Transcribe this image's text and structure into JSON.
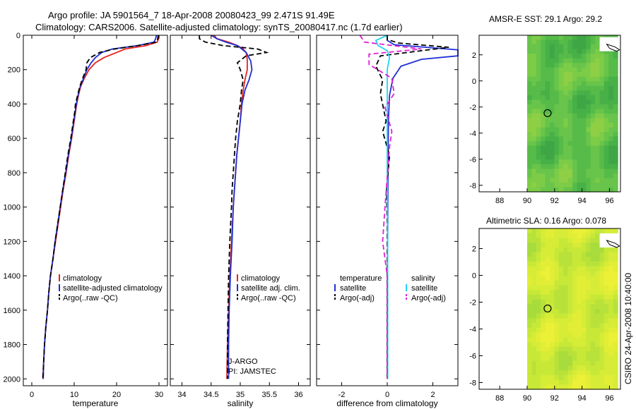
{
  "header": {
    "title_line1": "Argo profile: JA 5901564_7 18-Apr-2008 20080423_99 2.471S 91.49E",
    "title_line2": "Climatology: CARS2006. Satellite-adjusted climatology: synTS_20080417.nc (1.7d earlier)",
    "credit": "CSIRO 24-Apr-2008 10:40:00"
  },
  "colors": {
    "climatology": "#e8231e",
    "satellite": "#1f2fd6",
    "argo": "#000000",
    "salinity_satellite": "#22d4ee",
    "salinity_argo": "#e020d8"
  },
  "chart_data": [
    {
      "id": "temperature",
      "type": "line",
      "xlabel": "temperature",
      "xlim": [
        -2,
        32
      ],
      "ylim": [
        0,
        2040
      ],
      "xticks": [
        0,
        10,
        20,
        30
      ],
      "yticks": [
        0,
        200,
        400,
        600,
        800,
        1000,
        1200,
        1400,
        1600,
        1800,
        2000
      ],
      "legend": [
        "climatology",
        "satellite-adjusted climatology",
        "Argo(..raw -QC)"
      ],
      "series": [
        {
          "name": "climatology",
          "color_key": "climatology",
          "points": [
            [
              30.0,
              0
            ],
            [
              29.9,
              20
            ],
            [
              29.6,
              40
            ],
            [
              27.0,
              60
            ],
            [
              22.0,
              80
            ],
            [
              20.0,
              100
            ],
            [
              17.0,
              130
            ],
            [
              15.0,
              160
            ],
            [
              13.5,
              200
            ],
            [
              12.4,
              250
            ],
            [
              11.5,
              300
            ],
            [
              11.0,
              350
            ],
            [
              10.6,
              400
            ],
            [
              10.3,
              450
            ],
            [
              10.0,
              500
            ],
            [
              9.4,
              600
            ],
            [
              8.7,
              700
            ],
            [
              8.1,
              800
            ],
            [
              7.4,
              900
            ],
            [
              6.8,
              1000
            ],
            [
              6.2,
              1100
            ],
            [
              5.6,
              1200
            ],
            [
              5.0,
              1300
            ],
            [
              4.4,
              1400
            ],
            [
              4.0,
              1500
            ],
            [
              3.7,
              1600
            ],
            [
              3.3,
              1700
            ],
            [
              3.0,
              1800
            ],
            [
              2.8,
              1900
            ],
            [
              2.6,
              2000
            ]
          ]
        },
        {
          "name": "satellite-adjusted climatology",
          "color_key": "satellite",
          "points": [
            [
              29.4,
              0
            ],
            [
              29.2,
              20
            ],
            [
              28.8,
              40
            ],
            [
              25.0,
              60
            ],
            [
              19.0,
              80
            ],
            [
              16.5,
              100
            ],
            [
              15.0,
              130
            ],
            [
              14.0,
              160
            ],
            [
              13.0,
              200
            ],
            [
              12.2,
              250
            ],
            [
              11.4,
              300
            ],
            [
              10.9,
              350
            ],
            [
              10.5,
              400
            ],
            [
              10.2,
              450
            ],
            [
              9.9,
              500
            ],
            [
              9.3,
              600
            ],
            [
              8.6,
              700
            ],
            [
              8.0,
              800
            ],
            [
              7.3,
              900
            ],
            [
              6.7,
              1000
            ],
            [
              6.1,
              1100
            ],
            [
              5.5,
              1200
            ],
            [
              5.0,
              1300
            ],
            [
              4.4,
              1400
            ],
            [
              4.0,
              1500
            ],
            [
              3.7,
              1600
            ],
            [
              3.3,
              1700
            ],
            [
              3.0,
              1800
            ],
            [
              2.8,
              1900
            ],
            [
              2.7,
              2000
            ]
          ]
        },
        {
          "name": "Argo(..raw -QC)",
          "color_key": "argo",
          "dashed": true,
          "points": [
            [
              29.8,
              0
            ],
            [
              29.7,
              20
            ],
            [
              29.5,
              40
            ],
            [
              25.0,
              60
            ],
            [
              19.5,
              80
            ],
            [
              16.0,
              100
            ],
            [
              13.8,
              130
            ],
            [
              13.0,
              160
            ],
            [
              12.8,
              200
            ],
            [
              12.0,
              250
            ],
            [
              11.3,
              300
            ],
            [
              10.8,
              350
            ],
            [
              10.3,
              400
            ],
            [
              10.1,
              450
            ],
            [
              9.8,
              500
            ],
            [
              9.2,
              600
            ],
            [
              8.5,
              700
            ],
            [
              7.9,
              800
            ],
            [
              7.3,
              900
            ],
            [
              6.7,
              1000
            ],
            [
              6.1,
              1100
            ],
            [
              5.5,
              1200
            ],
            [
              5.0,
              1300
            ],
            [
              4.4,
              1400
            ],
            [
              4.0,
              1500
            ],
            [
              3.7,
              1600
            ],
            [
              3.3,
              1700
            ],
            [
              3.0,
              1800
            ],
            [
              2.8,
              1900
            ],
            [
              2.6,
              2000
            ]
          ]
        }
      ]
    },
    {
      "id": "salinity",
      "type": "line",
      "xlabel": "salinity",
      "xlim": [
        33.8,
        36.2
      ],
      "ylim": [
        0,
        2040
      ],
      "xticks": [
        34,
        34.5,
        35,
        35.5,
        36
      ],
      "legend": [
        "climatology",
        "satellite adj. clim.",
        "Argo(..raw -QC)"
      ],
      "annotations": [
        "J-ARGO",
        "PI: JAMSTEC"
      ],
      "series": [
        {
          "name": "climatology",
          "color_key": "climatology",
          "points": [
            [
              34.55,
              0
            ],
            [
              34.6,
              20
            ],
            [
              34.8,
              40
            ],
            [
              34.95,
              60
            ],
            [
              35.05,
              80
            ],
            [
              35.1,
              100
            ],
            [
              35.12,
              140
            ],
            [
              35.12,
              200
            ],
            [
              35.08,
              260
            ],
            [
              35.05,
              320
            ],
            [
              35.02,
              400
            ],
            [
              35.0,
              500
            ],
            [
              34.97,
              600
            ],
            [
              34.94,
              700
            ],
            [
              34.92,
              800
            ],
            [
              34.9,
              900
            ],
            [
              34.88,
              1000
            ],
            [
              34.85,
              1200
            ],
            [
              34.82,
              1400
            ],
            [
              34.8,
              1600
            ],
            [
              34.78,
              1800
            ],
            [
              34.77,
              2000
            ]
          ]
        },
        {
          "name": "satellite adj. clim.",
          "color_key": "satellite",
          "points": [
            [
              34.5,
              0
            ],
            [
              34.6,
              20
            ],
            [
              34.75,
              40
            ],
            [
              34.95,
              60
            ],
            [
              35.1,
              100
            ],
            [
              35.18,
              150
            ],
            [
              35.2,
              200
            ],
            [
              35.15,
              260
            ],
            [
              35.08,
              320
            ],
            [
              35.03,
              400
            ],
            [
              35.0,
              500
            ],
            [
              34.97,
              600
            ],
            [
              34.94,
              700
            ],
            [
              34.92,
              800
            ],
            [
              34.9,
              900
            ],
            [
              34.88,
              1000
            ],
            [
              34.86,
              1200
            ],
            [
              34.83,
              1400
            ],
            [
              34.81,
              1600
            ],
            [
              34.8,
              1800
            ],
            [
              34.8,
              2000
            ]
          ]
        },
        {
          "name": "Argo(..raw -QC)",
          "color_key": "argo",
          "dashed": true,
          "points": [
            [
              34.3,
              0
            ],
            [
              34.3,
              20
            ],
            [
              34.4,
              40
            ],
            [
              34.7,
              60
            ],
            [
              35.3,
              80
            ],
            [
              35.45,
              100
            ],
            [
              35.1,
              120
            ],
            [
              34.95,
              160
            ],
            [
              35.0,
              200
            ],
            [
              35.05,
              260
            ],
            [
              35.02,
              320
            ],
            [
              35.0,
              400
            ],
            [
              34.95,
              500
            ],
            [
              34.92,
              600
            ],
            [
              34.9,
              700
            ],
            [
              34.88,
              800
            ],
            [
              34.86,
              900
            ],
            [
              34.85,
              1000
            ],
            [
              34.82,
              1200
            ],
            [
              34.8,
              1400
            ],
            [
              34.79,
              1600
            ],
            [
              34.78,
              1800
            ],
            [
              34.78,
              2000
            ]
          ]
        }
      ]
    },
    {
      "id": "difference",
      "type": "line",
      "xlabel": "difference from climatology",
      "xlim": [
        -3.1,
        3.1
      ],
      "ylim": [
        0,
        2040
      ],
      "xticks": [
        -2,
        0,
        2
      ],
      "legend_headers": [
        "temperature",
        "salinity"
      ],
      "legend": [
        "satellite",
        "Argo(-adj)",
        "satellite",
        "Argo(-adj)"
      ],
      "series": [
        {
          "name": "temperature satellite",
          "color_key": "satellite",
          "points": [
            [
              0.0,
              0
            ],
            [
              0.0,
              30
            ],
            [
              0.3,
              55
            ],
            [
              3.1,
              85
            ],
            [
              3.1,
              120
            ],
            [
              1.5,
              140
            ],
            [
              0.6,
              180
            ],
            [
              0.25,
              250
            ],
            [
              0.1,
              350
            ],
            [
              0.05,
              500
            ],
            [
              0.03,
              800
            ],
            [
              0.02,
              1200
            ],
            [
              0.0,
              1600
            ],
            [
              0.0,
              2000
            ]
          ]
        },
        {
          "name": "temperature Argo(-adj)",
          "color_key": "argo",
          "dashed": true,
          "points": [
            [
              0.0,
              0
            ],
            [
              0.0,
              25
            ],
            [
              0.5,
              45
            ],
            [
              2.7,
              70
            ],
            [
              1.2,
              95
            ],
            [
              -0.3,
              120
            ],
            [
              -0.5,
              180
            ],
            [
              -0.2,
              260
            ],
            [
              -0.3,
              340
            ],
            [
              -0.05,
              500
            ],
            [
              -0.2,
              560
            ],
            [
              0.1,
              700
            ],
            [
              -0.03,
              900
            ],
            [
              0.0,
              1100
            ],
            [
              0.0,
              1400
            ],
            [
              0.0,
              2000
            ]
          ]
        },
        {
          "name": "salinity satellite",
          "color_key": "salinity_satellite",
          "points": [
            [
              0.0,
              0
            ],
            [
              -0.5,
              30
            ],
            [
              -0.4,
              60
            ],
            [
              0.0,
              90
            ],
            [
              0.1,
              130
            ],
            [
              0.0,
              200
            ],
            [
              0.0,
              400
            ],
            [
              0.0,
              800
            ],
            [
              0.02,
              1200
            ],
            [
              0.02,
              1600
            ],
            [
              0.02,
              2000
            ]
          ]
        },
        {
          "name": "salinity Argo(-adj)",
          "color_key": "salinity_argo",
          "dashed": true,
          "points": [
            [
              -1.2,
              0
            ],
            [
              -1.0,
              40
            ],
            [
              1.5,
              80
            ],
            [
              -0.8,
              110
            ],
            [
              -0.8,
              170
            ],
            [
              0.2,
              250
            ],
            [
              0.3,
              340
            ],
            [
              -0.1,
              420
            ],
            [
              0.2,
              560
            ],
            [
              0.1,
              650
            ],
            [
              -0.1,
              1000
            ],
            [
              -0.2,
              1200
            ],
            [
              0.0,
              1400
            ],
            [
              0.0,
              2000
            ]
          ]
        }
      ]
    },
    {
      "id": "amsre_sst",
      "type": "heatmap",
      "title": "AMSR-E SST: 29.1 Argo: 29.2",
      "xlim": [
        86.5,
        96.8
      ],
      "ylim": [
        -8.5,
        3.5
      ],
      "xticks": [
        88,
        90,
        92,
        94,
        96
      ],
      "yticks": [
        2,
        0,
        -2,
        -4,
        -6,
        -8
      ],
      "data_x_range": [
        90,
        96.6
      ],
      "marker": {
        "lon": 91.49,
        "lat": -2.47
      },
      "palette": [
        "#3fa646",
        "#47b047",
        "#56bb49",
        "#68c44a",
        "#7ccc47",
        "#8fcf45"
      ],
      "land_patches": [
        {
          "lon": 95.8,
          "lat": 2.6
        }
      ]
    },
    {
      "id": "altimetric_sla",
      "type": "heatmap",
      "title": "Altimetric SLA: 0.16 Argo: 0.078",
      "xlim": [
        86.5,
        96.8
      ],
      "ylim": [
        -8.5,
        3.5
      ],
      "xticks": [
        88,
        90,
        92,
        94,
        96
      ],
      "yticks": [
        2,
        0,
        -2,
        -4,
        -6,
        -8
      ],
      "data_x_range": [
        90,
        96.6
      ],
      "marker": {
        "lon": 91.49,
        "lat": -2.47
      },
      "palette": [
        "#a8dc3c",
        "#b8e23a",
        "#c8e838",
        "#d6ec37",
        "#e2ee36",
        "#ecf037"
      ],
      "land_patches": [
        {
          "lon": 95.8,
          "lat": 2.4
        }
      ]
    }
  ]
}
